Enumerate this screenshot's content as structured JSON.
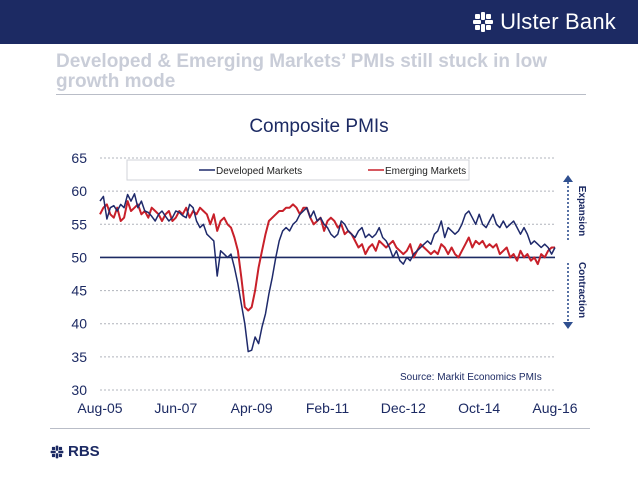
{
  "header": {
    "brand": "Ulster Bank"
  },
  "slide": {
    "title": "Developed & Emerging Markets’ PMIs still stuck in low growth mode"
  },
  "footer": {
    "logo": "RBS"
  },
  "colors": {
    "navy": "#1c2a63",
    "developed": "#1f2a6b",
    "emerging": "#c8202a",
    "arrow": "#2f4f8f"
  },
  "chart_data": {
    "type": "line",
    "title": "Composite PMIs",
    "x_tick_labels": [
      "Aug-05",
      "Jun-07",
      "Apr-09",
      "Feb-11",
      "Dec-12",
      "Oct-14",
      "Aug-16"
    ],
    "x_range_months": [
      0,
      132
    ],
    "ylim": [
      30,
      65
    ],
    "y_ticks": [
      30,
      35,
      40,
      45,
      50,
      55,
      60,
      65
    ],
    "gridlines": "dotted",
    "reference_line": 50,
    "legend": [
      "Developed Markets",
      "Emerging Markets"
    ],
    "legend_position": "top",
    "source": "Source: Markit Economics PMIs",
    "annotations": {
      "expansion": "Expansion",
      "contraction": "Contraction"
    },
    "series": [
      {
        "name": "Developed Markets",
        "x": [
          0,
          1,
          2,
          3,
          4,
          5,
          6,
          7,
          8,
          9,
          10,
          11,
          12,
          13,
          14,
          15,
          16,
          17,
          18,
          19,
          20,
          21,
          22,
          23,
          24,
          25,
          26,
          27,
          28,
          29,
          30,
          31,
          32,
          33,
          34,
          35,
          36,
          37,
          38,
          39,
          40,
          41,
          42,
          43,
          44,
          45,
          46,
          47,
          48,
          49,
          50,
          51,
          52,
          53,
          54,
          55,
          56,
          57,
          58,
          59,
          60,
          61,
          62,
          63,
          64,
          65,
          66,
          67,
          68,
          69,
          70,
          71,
          72,
          73,
          74,
          75,
          76,
          77,
          78,
          79,
          80,
          81,
          82,
          83,
          84,
          85,
          86,
          87,
          88,
          89,
          90,
          91,
          92,
          93,
          94,
          95,
          96,
          97,
          98,
          99,
          100,
          101,
          102,
          103,
          104,
          105,
          106,
          107,
          108,
          109,
          110,
          111,
          112,
          113,
          114,
          115,
          116,
          117,
          118,
          119,
          120,
          121,
          122,
          123,
          124,
          125,
          126,
          127,
          128,
          129,
          130,
          131,
          132
        ],
        "values": [
          58.5,
          59.2,
          55.8,
          57.5,
          57.8,
          57.0,
          58.0,
          57.5,
          59.5,
          58.5,
          59.6,
          57.5,
          58.5,
          57.0,
          56.8,
          56.2,
          55.5,
          56.5,
          57.0,
          56.2,
          55.5,
          56.0,
          57.0,
          56.8,
          56.3,
          56.0,
          58.0,
          57.5,
          55.5,
          54.5,
          55.0,
          53.5,
          53.0,
          52.5,
          47.2,
          51.0,
          50.5,
          50.0,
          50.5,
          48.5,
          46.0,
          43.0,
          40.0,
          35.8,
          36.0,
          38.0,
          37.0,
          39.5,
          41.5,
          44.5,
          47.0,
          50.0,
          52.5,
          54.0,
          54.5,
          54.0,
          55.0,
          55.5,
          56.5,
          57.0,
          57.5,
          56.0,
          57.0,
          55.5,
          56.0,
          55.0,
          54.5,
          53.5,
          53.0,
          53.5,
          55.5,
          55.0,
          54.0,
          53.5,
          53.0,
          54.0,
          54.5,
          53.0,
          53.5,
          53.0,
          53.5,
          54.5,
          53.0,
          52.5,
          51.5,
          50.0,
          51.0,
          49.5,
          49.0,
          50.0,
          49.5,
          50.5,
          51.0,
          51.5,
          52.0,
          52.5,
          52.0,
          53.5,
          54.0,
          55.5,
          53.0,
          54.5,
          54.0,
          53.5,
          54.0,
          55.0,
          56.5,
          57.0,
          56.0,
          55.0,
          56.5,
          55.0,
          54.5,
          55.5,
          56.5,
          55.0,
          54.5,
          55.5,
          54.5,
          55.0,
          55.5,
          54.5,
          53.5,
          54.5,
          53.5,
          52.0,
          52.5,
          52.0,
          51.5,
          52.0,
          51.5,
          50.5,
          51.5
        ]
      },
      {
        "name": "Emerging Markets",
        "x": [
          0,
          1,
          2,
          3,
          4,
          5,
          6,
          7,
          8,
          9,
          10,
          11,
          12,
          13,
          14,
          15,
          16,
          17,
          18,
          19,
          20,
          21,
          22,
          23,
          24,
          25,
          26,
          27,
          28,
          29,
          30,
          31,
          32,
          33,
          34,
          35,
          36,
          37,
          38,
          39,
          40,
          41,
          42,
          43,
          44,
          45,
          46,
          47,
          48,
          49,
          50,
          51,
          52,
          53,
          54,
          55,
          56,
          57,
          58,
          59,
          60,
          61,
          62,
          63,
          64,
          65,
          66,
          67,
          68,
          69,
          70,
          71,
          72,
          73,
          74,
          75,
          76,
          77,
          78,
          79,
          80,
          81,
          82,
          83,
          84,
          85,
          86,
          87,
          88,
          89,
          90,
          91,
          92,
          93,
          94,
          95,
          96,
          97,
          98,
          99,
          100,
          101,
          102,
          103,
          104,
          105,
          106,
          107,
          108,
          109,
          110,
          111,
          112,
          113,
          114,
          115,
          116,
          117,
          118,
          119,
          120,
          121,
          122,
          123,
          124,
          125,
          126,
          127,
          128,
          129,
          130,
          131,
          132
        ],
        "values": [
          56.5,
          57.5,
          58.0,
          56.5,
          56.0,
          57.5,
          55.5,
          56.0,
          58.5,
          57.0,
          57.5,
          58.0,
          56.5,
          57.0,
          56.0,
          57.5,
          57.0,
          56.5,
          55.5,
          56.5,
          57.0,
          55.5,
          56.0,
          57.0,
          56.5,
          57.5,
          56.0,
          57.0,
          56.5,
          57.5,
          57.0,
          56.5,
          55.0,
          56.5,
          54.0,
          55.5,
          56.0,
          55.0,
          54.5,
          53.0,
          51.0,
          47.0,
          42.5,
          42.0,
          42.5,
          45.0,
          48.5,
          51.0,
          53.5,
          55.5,
          56.0,
          56.5,
          57.0,
          57.0,
          57.5,
          57.5,
          58.0,
          57.5,
          56.5,
          57.5,
          57.5,
          56.0,
          55.0,
          55.5,
          56.0,
          54.0,
          55.5,
          56.0,
          55.5,
          54.5,
          55.0,
          53.5,
          54.0,
          53.5,
          52.5,
          51.5,
          52.0,
          50.5,
          51.5,
          52.0,
          51.0,
          52.5,
          52.0,
          51.5,
          52.0,
          52.5,
          51.5,
          51.0,
          50.5,
          51.0,
          52.0,
          50.0,
          51.0,
          52.0,
          51.5,
          51.0,
          50.5,
          51.0,
          50.5,
          52.0,
          51.5,
          50.5,
          51.5,
          50.5,
          50.0,
          51.0,
          52.0,
          53.0,
          51.5,
          52.5,
          52.0,
          52.5,
          51.5,
          52.0,
          51.5,
          52.0,
          50.5,
          51.0,
          51.5,
          50.0,
          50.5,
          49.5,
          51.0,
          50.0,
          50.5,
          49.5,
          50.0,
          49.0,
          50.5,
          50.0,
          51.0,
          51.5,
          51.5
        ]
      }
    ]
  }
}
